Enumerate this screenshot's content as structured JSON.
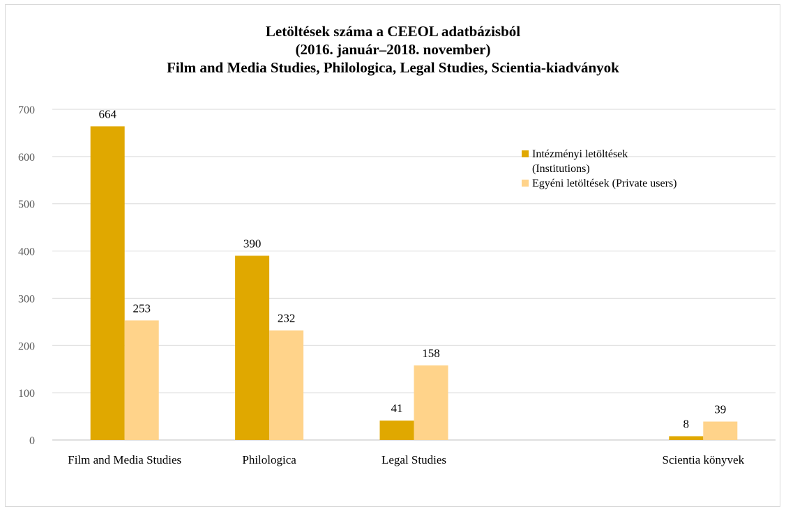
{
  "chart_data": {
    "type": "bar",
    "title": [
      "Letöltések száma a CEEOL adatbázisból",
      "(2016. január–2018. november)",
      "Film and Media Studies, Philologica, Legal Studies, Scientia-kiadványok"
    ],
    "categories": [
      "Film and Media Studies",
      "Philologica",
      "Legal Studies",
      "",
      "Scientia könyvek"
    ],
    "series": [
      {
        "name": "Intézményi letöltések (Institutions)",
        "values": [
          664,
          390,
          41,
          null,
          8
        ],
        "color": "#E0A800"
      },
      {
        "name": "Egyéni letöltések (Private users)",
        "values": [
          253,
          232,
          158,
          null,
          39
        ],
        "color": "#FFD38A"
      }
    ],
    "legend_lines": [
      [
        "Intézményi letöltések",
        "(Institutions)"
      ],
      [
        "Egyéni letöltések (Private users)"
      ]
    ],
    "yticks": [
      "0",
      "100",
      "200",
      "300",
      "400",
      "500",
      "600",
      "700"
    ],
    "ylim": [
      0,
      700
    ],
    "grid": true,
    "legend_position": "top-right"
  }
}
